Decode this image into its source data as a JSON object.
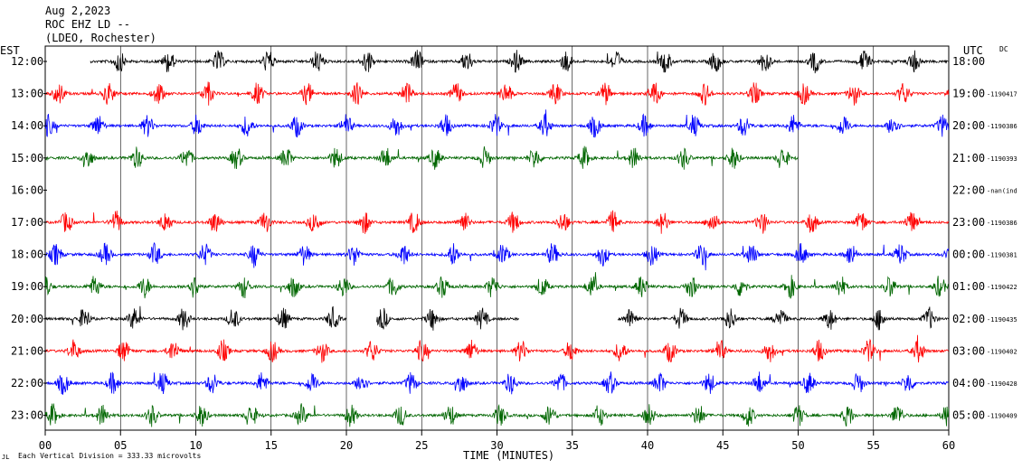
{
  "header": {
    "date": "Aug 2,2023",
    "station": "ROC EHZ LD --",
    "network": "(LDEO, Rochester)"
  },
  "chart_data": {
    "type": "line",
    "title": "",
    "xlabel": "TIME (MINUTES)",
    "xlim": [
      0,
      60
    ],
    "x_ticks": [
      "00",
      "05",
      "10",
      "15",
      "20",
      "25",
      "30",
      "35",
      "40",
      "45",
      "50",
      "55",
      "60"
    ],
    "left_axis_label": "EST",
    "right_axis_label": "UTC",
    "corner_tag": "DC",
    "footer_note": "Each Vertical Division = 333.33 microvolts",
    "trace_colors": [
      "#000000",
      "#ff0000",
      "#0000ff",
      "#006600"
    ],
    "rows": [
      {
        "est": "12:00",
        "utc": "18:00",
        "offset": "",
        "color": "#000000",
        "start_min": 3,
        "end_min": 60,
        "gaps": []
      },
      {
        "est": "13:00",
        "utc": "19:00",
        "offset": "-1190417",
        "color": "#ff0000",
        "start_min": 0,
        "end_min": 60,
        "gaps": []
      },
      {
        "est": "14:00",
        "utc": "20:00",
        "offset": "-1190386",
        "color": "#0000ff",
        "start_min": 0,
        "end_min": 60,
        "gaps": []
      },
      {
        "est": "15:00",
        "utc": "21:00",
        "offset": "-1190393",
        "color": "#006600",
        "start_min": 0,
        "end_min": 50,
        "gaps": []
      },
      {
        "est": "16:00",
        "utc": "22:00",
        "offset": "-nan(ind",
        "color": "#000000",
        "start_min": 0,
        "end_min": 0,
        "gaps": []
      },
      {
        "est": "17:00",
        "utc": "23:00",
        "offset": "-1190386",
        "color": "#ff0000",
        "start_min": 0,
        "end_min": 60,
        "gaps": []
      },
      {
        "est": "18:00",
        "utc": "00:00",
        "offset": "-1190381",
        "color": "#0000ff",
        "start_min": 0,
        "end_min": 60,
        "gaps": []
      },
      {
        "est": "19:00",
        "utc": "01:00",
        "offset": "-1190422",
        "color": "#006600",
        "start_min": 0,
        "end_min": 60,
        "gaps": []
      },
      {
        "est": "20:00",
        "utc": "02:00",
        "offset": "-1190435",
        "color": "#000000",
        "start_min": 0,
        "end_min": 60,
        "gaps": [
          [
            20,
            22
          ],
          [
            31.5,
            38
          ]
        ]
      },
      {
        "est": "21:00",
        "utc": "03:00",
        "offset": "-1190402",
        "color": "#ff0000",
        "start_min": 0,
        "end_min": 60,
        "gaps": []
      },
      {
        "est": "22:00",
        "utc": "04:00",
        "offset": "-1190428",
        "color": "#0000ff",
        "start_min": 0,
        "end_min": 60,
        "gaps": []
      },
      {
        "est": "23:00",
        "utc": "05:00",
        "offset": "-1190409",
        "color": "#006600",
        "start_min": 0,
        "end_min": 60,
        "gaps": []
      }
    ]
  }
}
